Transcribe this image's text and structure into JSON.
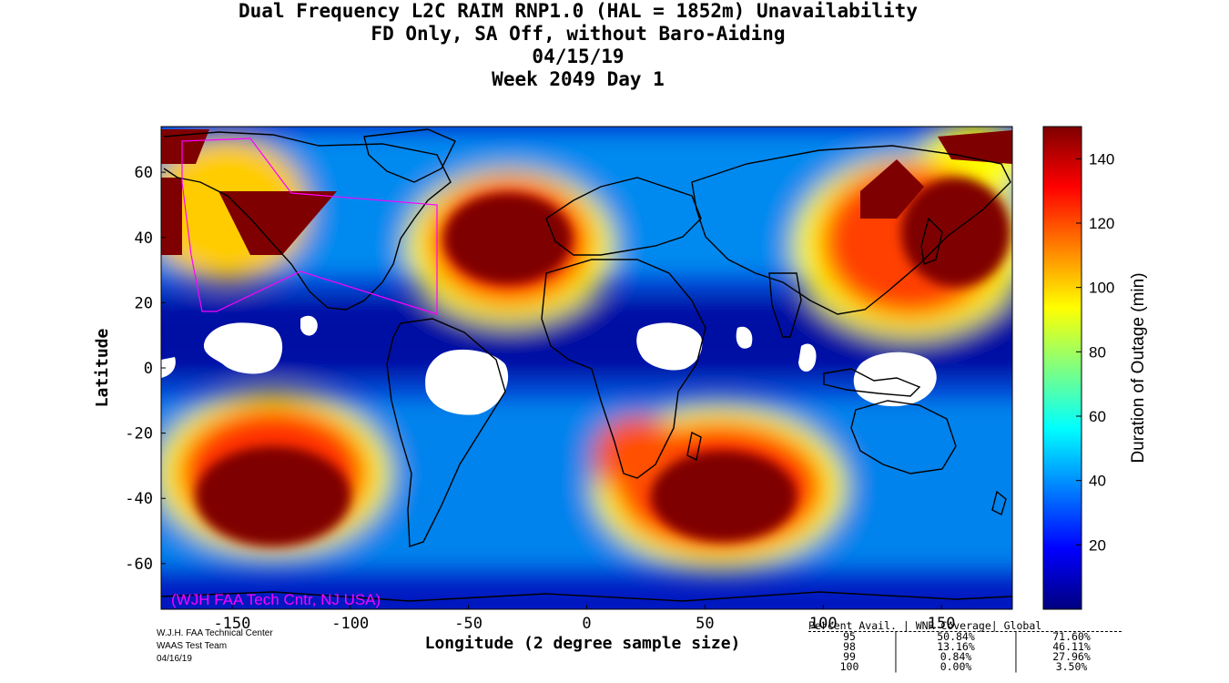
{
  "title": {
    "line1": "Dual Frequency L2C RAIM RNP1.0 (HAL = 1852m) Unavailability",
    "line2": "FD Only, SA Off, without Baro-Aiding",
    "line3": "04/15/19",
    "line4": "Week 2049 Day 1"
  },
  "axes": {
    "xlabel": "Longitude (2 degree sample size)",
    "ylabel": "Latitude",
    "xlim": [
      -180,
      180
    ],
    "ylim": [
      -74,
      74
    ],
    "xticks": [
      "-150",
      "-100",
      "-50",
      "0",
      "50",
      "100",
      "150"
    ],
    "yticks": [
      "60",
      "40",
      "20",
      "0",
      "-20",
      "-40",
      "-60"
    ]
  },
  "colorbar": {
    "label": "Duration of Outage (min)",
    "range": [
      0,
      150
    ],
    "ticks": [
      "140",
      "120",
      "100",
      "80",
      "60",
      "40",
      "20"
    ],
    "colors": [
      "#00007f",
      "#0000ff",
      "#0080ff",
      "#00ffff",
      "#80ff80",
      "#ffff00",
      "#ff8000",
      "#ff0000",
      "#7f0000"
    ]
  },
  "watermark": "(WJH FAA Tech Cntr, NJ USA)",
  "credit": [
    "W.J.H. FAA Technical Center",
    "WAAS Test Team",
    "04/16/19"
  ],
  "stats": {
    "header": "Percent Avail. | WNR Coverage| Global",
    "rows": [
      {
        "pct": "95",
        "wnr": "50.84%",
        "global": "71.60%"
      },
      {
        "pct": "98",
        "wnr": "13.16%",
        "global": "46.11%"
      },
      {
        "pct": "99",
        "wnr": "0.84%",
        "global": "27.96%"
      },
      {
        "pct": "100",
        "wnr": "0.00%",
        "global": "3.50%"
      }
    ]
  },
  "chart_data": {
    "type": "heatmap",
    "title": "Dual Frequency L2C RAIM RNP1.0 (HAL = 1852m) Unavailability",
    "xlabel": "Longitude (2 degree sample size)",
    "ylabel": "Latitude",
    "xlim": [
      -180,
      180
    ],
    "ylim": [
      -74,
      74
    ],
    "value_label": "Duration of Outage (min)",
    "value_range": [
      0,
      150
    ],
    "regions_over_140": [
      {
        "lon": -30,
        "lat": 40
      },
      {
        "lon": -130,
        "lat": 40
      },
      {
        "lon": 140,
        "lat": 50
      },
      {
        "lon": -140,
        "lat": -40
      },
      {
        "lon": 65,
        "lat": -45
      }
    ],
    "regions_zero": [
      {
        "lon": -150,
        "lat": 5
      },
      {
        "lon": -50,
        "lat": -5
      },
      {
        "lon": 35,
        "lat": 5
      },
      {
        "lon": 135,
        "lat": -5
      }
    ]
  }
}
